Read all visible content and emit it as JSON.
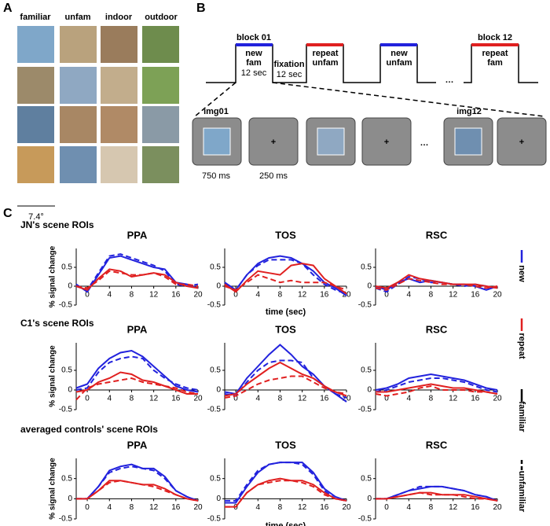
{
  "panel_labels": [
    "A",
    "B",
    "C"
  ],
  "panel_a": {
    "columns": [
      "familiar",
      "unfam",
      "indoor",
      "outdoor"
    ],
    "scale": "7.4°"
  },
  "panel_b": {
    "block_labels": [
      "block 01",
      "block 12"
    ],
    "timeline": [
      {
        "lines": [
          "new",
          "fam",
          "12 sec"
        ]
      },
      {
        "lines": [
          "fixation",
          "12 sec"
        ]
      },
      {
        "lines": [
          "repeat",
          "unfam"
        ]
      },
      {
        "lines": [
          "new",
          "unfam"
        ]
      },
      {
        "lines": [
          "repeat",
          "fam"
        ]
      }
    ],
    "ellipsis": "…",
    "images": [
      "img01",
      "img12"
    ],
    "fixation_mark": "+",
    "durations": [
      "750 ms",
      "250 ms"
    ]
  },
  "panel_c": {
    "row_titles": [
      "JN's scene ROIs",
      "C1's scene ROIs",
      "averaged controls' scene ROIs"
    ],
    "legend": [
      {
        "label": "new",
        "color": "#2222dd",
        "dashed": false
      },
      {
        "label": "repeat",
        "color": "#e02020",
        "dashed": false
      },
      {
        "label": "familiar",
        "color": "#000000",
        "dashed": false
      },
      {
        "label": "unfamiliar",
        "color": "#000000",
        "dashed": true
      }
    ]
  },
  "chart_data": [
    {
      "type": "line",
      "title": "PPA",
      "ylabel": "% signal change",
      "x": [
        -2,
        0,
        2,
        4,
        6,
        8,
        10,
        12,
        14,
        16,
        18,
        20
      ],
      "xlim": [
        -2,
        20
      ],
      "ylim": [
        -0.5,
        1
      ],
      "xticks": [
        0,
        4,
        8,
        12,
        16,
        20
      ],
      "yticks": [
        -0.5,
        0,
        0.5
      ],
      "series": [
        {
          "color": "#2222dd",
          "dashed": false,
          "values": [
            0.05,
            -0.15,
            0.3,
            0.75,
            0.8,
            0.7,
            0.6,
            0.5,
            0.45,
            0.1,
            0.05,
            -0.05
          ]
        },
        {
          "color": "#2222dd",
          "dashed": true,
          "values": [
            0,
            -0.1,
            0.35,
            0.8,
            0.85,
            0.75,
            0.65,
            0.55,
            0.4,
            0.05,
            0,
            0.05
          ]
        },
        {
          "color": "#e02020",
          "dashed": false,
          "values": [
            0,
            -0.1,
            0.2,
            0.45,
            0.4,
            0.25,
            0.3,
            0.35,
            0.3,
            0.1,
            0,
            -0.05
          ]
        },
        {
          "color": "#e02020",
          "dashed": true,
          "values": [
            0,
            -0.05,
            0.15,
            0.4,
            0.35,
            0.3,
            0.3,
            0.35,
            0.25,
            0.05,
            0.05,
            0
          ]
        }
      ]
    },
    {
      "type": "line",
      "title": "TOS",
      "xlabel": "time (sec)",
      "x": [
        -2,
        0,
        2,
        4,
        6,
        8,
        10,
        12,
        14,
        16,
        18,
        20
      ],
      "xlim": [
        -2,
        20
      ],
      "ylim": [
        -0.5,
        1
      ],
      "xticks": [
        0,
        4,
        8,
        12,
        16,
        20
      ],
      "yticks": [
        -0.5,
        0,
        0.5
      ],
      "series": [
        {
          "color": "#2222dd",
          "dashed": false,
          "values": [
            0.1,
            -0.1,
            0.3,
            0.6,
            0.75,
            0.8,
            0.75,
            0.6,
            0.4,
            0.1,
            -0.05,
            -0.25
          ]
        },
        {
          "color": "#2222dd",
          "dashed": true,
          "values": [
            0.05,
            -0.1,
            0.3,
            0.55,
            0.7,
            0.7,
            0.7,
            0.6,
            0.3,
            0.05,
            -0.1,
            -0.2
          ]
        },
        {
          "color": "#e02020",
          "dashed": false,
          "values": [
            0.05,
            -0.15,
            0.15,
            0.4,
            0.35,
            0.3,
            0.55,
            0.6,
            0.55,
            0.2,
            0,
            -0.2
          ]
        },
        {
          "color": "#e02020",
          "dashed": true,
          "values": [
            0,
            -0.1,
            0.1,
            0.3,
            0.2,
            0.1,
            0.15,
            0.1,
            0.1,
            0.1,
            0,
            -0.1
          ]
        }
      ]
    },
    {
      "type": "line",
      "title": "RSC",
      "x": [
        -2,
        0,
        2,
        4,
        6,
        8,
        10,
        12,
        14,
        16,
        18,
        20
      ],
      "xlim": [
        -2,
        20
      ],
      "ylim": [
        -0.5,
        1
      ],
      "xticks": [
        0,
        4,
        8,
        12,
        16,
        20
      ],
      "yticks": [
        -0.5,
        0,
        0.5
      ],
      "series": [
        {
          "color": "#2222dd",
          "dashed": false,
          "values": [
            0,
            -0.1,
            0.1,
            0.2,
            0.1,
            0.15,
            0.1,
            0.05,
            0.05,
            0,
            -0.1,
            0
          ]
        },
        {
          "color": "#2222dd",
          "dashed": true,
          "values": [
            -0.05,
            -0.15,
            0.05,
            0.25,
            0.2,
            0.1,
            0.1,
            0.05,
            0,
            0.05,
            0,
            -0.05
          ]
        },
        {
          "color": "#e02020",
          "dashed": false,
          "values": [
            0,
            -0.05,
            0.1,
            0.3,
            0.2,
            0.15,
            0.1,
            0.05,
            0.05,
            0.05,
            0,
            -0.05
          ]
        },
        {
          "color": "#e02020",
          "dashed": true,
          "values": [
            -0.05,
            -0.1,
            0.05,
            0.2,
            0.15,
            0.1,
            0.05,
            0.05,
            0.05,
            0,
            -0.05,
            0
          ]
        }
      ]
    },
    {
      "type": "line",
      "title": "PPA",
      "ylabel": "% signal change",
      "x": [
        -2,
        0,
        2,
        4,
        6,
        8,
        10,
        12,
        14,
        16,
        18,
        20
      ],
      "xlim": [
        -2,
        20
      ],
      "ylim": [
        -0.5,
        1.2
      ],
      "xticks": [
        0,
        4,
        8,
        12,
        16,
        20
      ],
      "yticks": [
        -0.5,
        0,
        0.5
      ],
      "series": [
        {
          "color": "#2222dd",
          "dashed": false,
          "values": [
            0.05,
            0.15,
            0.55,
            0.8,
            0.95,
            1,
            0.85,
            0.6,
            0.35,
            0.1,
            0,
            -0.05
          ]
        },
        {
          "color": "#2222dd",
          "dashed": true,
          "values": [
            0,
            0.05,
            0.45,
            0.7,
            0.8,
            0.85,
            0.8,
            0.5,
            0.3,
            0.15,
            0.05,
            0
          ]
        },
        {
          "color": "#e02020",
          "dashed": false,
          "values": [
            -0.05,
            0,
            0.2,
            0.3,
            0.45,
            0.4,
            0.25,
            0.2,
            0.1,
            0,
            -0.1,
            -0.1
          ]
        },
        {
          "color": "#e02020",
          "dashed": true,
          "values": [
            -0.25,
            0.05,
            0.15,
            0.2,
            0.25,
            0.3,
            0.2,
            0.15,
            0.1,
            0.05,
            -0.05,
            -0.1
          ]
        }
      ]
    },
    {
      "type": "line",
      "title": "TOS",
      "x": [
        -2,
        0,
        2,
        4,
        6,
        8,
        10,
        12,
        14,
        16,
        18,
        20
      ],
      "xlim": [
        -2,
        20
      ],
      "ylim": [
        -0.5,
        1.2
      ],
      "xticks": [
        0,
        4,
        8,
        12,
        16,
        20
      ],
      "yticks": [
        -0.5,
        0,
        0.5
      ],
      "series": [
        {
          "color": "#2222dd",
          "dashed": false,
          "values": [
            -0.05,
            -0.1,
            0.3,
            0.6,
            0.9,
            1.15,
            0.9,
            0.6,
            0.4,
            0.1,
            -0.1,
            -0.3
          ]
        },
        {
          "color": "#2222dd",
          "dashed": true,
          "values": [
            -0.1,
            -0.15,
            0.2,
            0.5,
            0.7,
            0.75,
            0.75,
            0.7,
            0.3,
            0.1,
            -0.1,
            -0.2
          ]
        },
        {
          "color": "#e02020",
          "dashed": false,
          "values": [
            -0.15,
            -0.1,
            0.15,
            0.35,
            0.55,
            0.7,
            0.55,
            0.4,
            0.3,
            0.1,
            -0.05,
            -0.15
          ]
        },
        {
          "color": "#e02020",
          "dashed": true,
          "values": [
            -0.2,
            -0.15,
            0,
            0.15,
            0.25,
            0.3,
            0.35,
            0.35,
            0.2,
            0.05,
            -0.05,
            -0.1
          ]
        }
      ]
    },
    {
      "type": "line",
      "title": "RSC",
      "x": [
        -2,
        0,
        2,
        4,
        6,
        8,
        10,
        12,
        14,
        16,
        18,
        20
      ],
      "xlim": [
        -2,
        20
      ],
      "ylim": [
        -0.5,
        1.2
      ],
      "xticks": [
        0,
        4,
        8,
        12,
        16,
        20
      ],
      "yticks": [
        -0.5,
        0,
        0.5
      ],
      "series": [
        {
          "color": "#2222dd",
          "dashed": false,
          "values": [
            0,
            0.05,
            0.15,
            0.3,
            0.35,
            0.4,
            0.35,
            0.3,
            0.25,
            0.15,
            0.05,
            0
          ]
        },
        {
          "color": "#2222dd",
          "dashed": true,
          "values": [
            -0.05,
            0,
            0.1,
            0.2,
            0.25,
            0.3,
            0.3,
            0.25,
            0.2,
            0.1,
            0,
            -0.05
          ]
        },
        {
          "color": "#e02020",
          "dashed": false,
          "values": [
            -0.05,
            -0.05,
            0,
            0.05,
            0.1,
            0.15,
            0.1,
            0.05,
            0.05,
            0,
            -0.05,
            -0.1
          ]
        },
        {
          "color": "#e02020",
          "dashed": true,
          "values": [
            -0.1,
            -0.15,
            -0.1,
            -0.05,
            0.05,
            0.1,
            0,
            0,
            0,
            -0.05,
            -0.05,
            -0.1
          ]
        }
      ]
    },
    {
      "type": "line",
      "title": "PPA",
      "ylabel": "% signal change",
      "x": [
        -2,
        0,
        2,
        4,
        6,
        8,
        10,
        12,
        14,
        16,
        18,
        20
      ],
      "xlim": [
        -2,
        20
      ],
      "ylim": [
        -0.5,
        1
      ],
      "xticks": [
        0,
        4,
        8,
        12,
        16,
        20
      ],
      "yticks": [
        -0.5,
        0,
        0.5
      ],
      "series": [
        {
          "color": "#2222dd",
          "dashed": false,
          "values": [
            0,
            0,
            0.3,
            0.7,
            0.8,
            0.85,
            0.75,
            0.75,
            0.55,
            0.2,
            0.05,
            -0.05
          ]
        },
        {
          "color": "#2222dd",
          "dashed": true,
          "values": [
            0,
            0,
            0.3,
            0.65,
            0.75,
            0.8,
            0.75,
            0.7,
            0.5,
            0.2,
            0.05,
            -0.05
          ]
        },
        {
          "color": "#e02020",
          "dashed": false,
          "values": [
            0,
            0,
            0.2,
            0.45,
            0.45,
            0.4,
            0.35,
            0.35,
            0.25,
            0.1,
            0,
            -0.05
          ]
        },
        {
          "color": "#e02020",
          "dashed": true,
          "values": [
            0,
            0,
            0.2,
            0.4,
            0.45,
            0.4,
            0.35,
            0.3,
            0.2,
            0.1,
            0,
            -0.05
          ]
        }
      ]
    },
    {
      "type": "line",
      "title": "TOS",
      "xlabel": "time (sec)",
      "x": [
        -2,
        0,
        2,
        4,
        6,
        8,
        10,
        12,
        14,
        16,
        18,
        20
      ],
      "xlim": [
        -2,
        20
      ],
      "ylim": [
        -0.5,
        1
      ],
      "xticks": [
        0,
        4,
        8,
        12,
        16,
        20
      ],
      "yticks": [
        -0.5,
        0,
        0.5
      ],
      "series": [
        {
          "color": "#2222dd",
          "dashed": false,
          "values": [
            -0.1,
            -0.1,
            0.3,
            0.65,
            0.85,
            0.9,
            0.9,
            0.9,
            0.65,
            0.25,
            0.05,
            -0.05
          ]
        },
        {
          "color": "#2222dd",
          "dashed": true,
          "values": [
            -0.05,
            -0.05,
            0.35,
            0.7,
            0.85,
            0.9,
            0.9,
            0.85,
            0.6,
            0.2,
            0,
            -0.05
          ]
        },
        {
          "color": "#e02020",
          "dashed": false,
          "values": [
            -0.2,
            -0.2,
            0.15,
            0.35,
            0.45,
            0.5,
            0.45,
            0.45,
            0.35,
            0.15,
            0,
            -0.05
          ]
        },
        {
          "color": "#e02020",
          "dashed": true,
          "values": [
            -0.2,
            -0.2,
            0.15,
            0.35,
            0.4,
            0.45,
            0.45,
            0.4,
            0.3,
            0.1,
            0,
            -0.05
          ]
        }
      ]
    },
    {
      "type": "line",
      "title": "RSC",
      "x": [
        -2,
        0,
        2,
        4,
        6,
        8,
        10,
        12,
        14,
        16,
        18,
        20
      ],
      "xlim": [
        -2,
        20
      ],
      "ylim": [
        -0.5,
        1
      ],
      "xticks": [
        0,
        4,
        8,
        12,
        16,
        20
      ],
      "yticks": [
        -0.5,
        0,
        0.5
      ],
      "series": [
        {
          "color": "#2222dd",
          "dashed": false,
          "values": [
            0,
            0,
            0.1,
            0.2,
            0.25,
            0.3,
            0.3,
            0.25,
            0.2,
            0.1,
            0.05,
            -0.05
          ]
        },
        {
          "color": "#2222dd",
          "dashed": true,
          "values": [
            0,
            0,
            0.1,
            0.2,
            0.3,
            0.3,
            0.3,
            0.25,
            0.2,
            0.1,
            0.05,
            -0.05
          ]
        },
        {
          "color": "#e02020",
          "dashed": false,
          "values": [
            0,
            0,
            0.05,
            0.1,
            0.15,
            0.15,
            0.1,
            0.1,
            0.1,
            0.05,
            0,
            -0.05
          ]
        },
        {
          "color": "#e02020",
          "dashed": true,
          "values": [
            0,
            0,
            0.05,
            0.1,
            0.15,
            0.1,
            0.1,
            0.1,
            0.05,
            0,
            0,
            -0.05
          ]
        }
      ]
    }
  ]
}
